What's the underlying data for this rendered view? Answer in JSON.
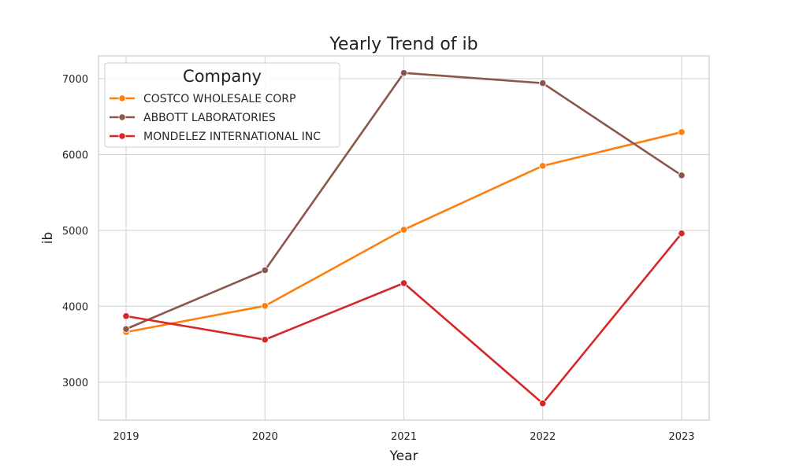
{
  "chart_data": {
    "type": "line",
    "title": "Yearly Trend of ib",
    "xlabel": "Year",
    "ylabel": "ib",
    "x": [
      "2019",
      "2020",
      "2021",
      "2022",
      "2023"
    ],
    "y_ticks": [
      "3000",
      "4000",
      "5000",
      "6000",
      "7000"
    ],
    "ylim": [
      2500,
      7300
    ],
    "grid": true,
    "legend": {
      "title": "Company",
      "placement": "top-left"
    },
    "series": [
      {
        "name": "COSTCO WHOLESALE CORP",
        "color": "#ff7f0e",
        "values": [
          3660,
          4005,
          5010,
          5850,
          6295
        ]
      },
      {
        "name": "ABBOTT LABORATORIES",
        "color": "#8c564b",
        "values": [
          3700,
          4475,
          7075,
          6940,
          5725
        ]
      },
      {
        "name": "MONDELEZ INTERNATIONAL INC",
        "color": "#d62728",
        "values": [
          3870,
          3560,
          4305,
          2720,
          4960
        ]
      }
    ]
  }
}
